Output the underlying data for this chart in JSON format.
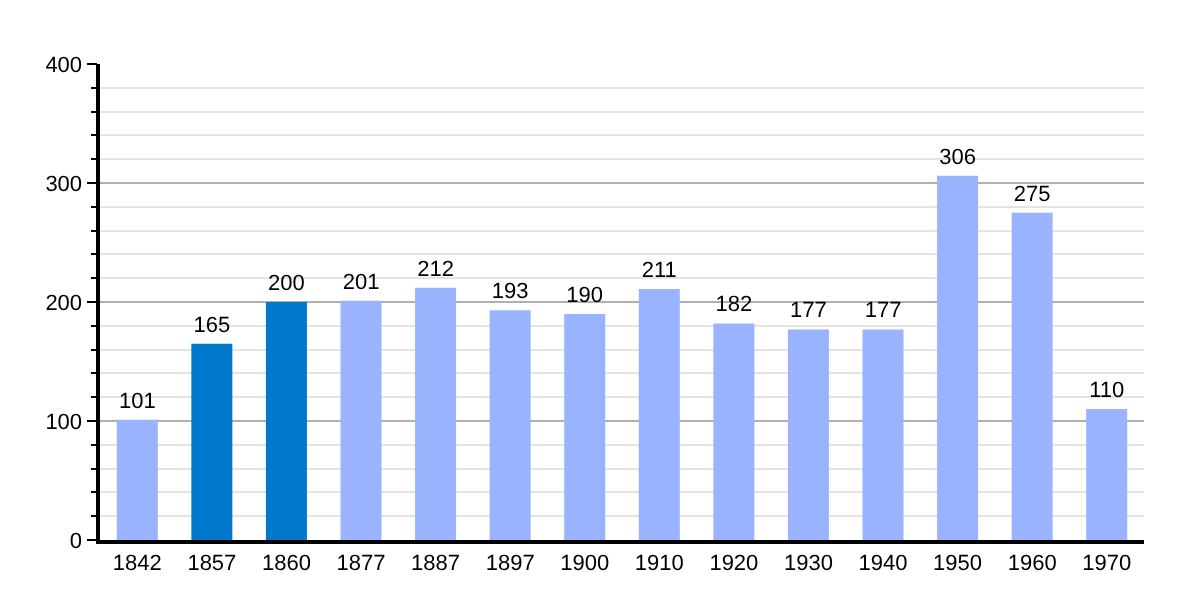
{
  "chart_data": {
    "type": "bar",
    "categories": [
      "1842",
      "1857",
      "1860",
      "1877",
      "1887",
      "1897",
      "1900",
      "1910",
      "1920",
      "1930",
      "1940",
      "1950",
      "1960",
      "1970"
    ],
    "values": [
      101,
      165,
      200,
      201,
      212,
      193,
      190,
      211,
      182,
      177,
      177,
      306,
      275,
      110
    ],
    "colors": [
      "#99b3ff",
      "#0078cc",
      "#0078cc",
      "#99b3ff",
      "#99b3ff",
      "#99b3ff",
      "#99b3ff",
      "#99b3ff",
      "#99b3ff",
      "#99b3ff",
      "#99b3ff",
      "#99b3ff",
      "#99b3ff",
      "#99b3ff"
    ],
    "ylim": [
      0,
      400
    ],
    "yticks": [
      0,
      100,
      200,
      300,
      400
    ],
    "grid": "y",
    "data_labels": true,
    "legend": false
  }
}
